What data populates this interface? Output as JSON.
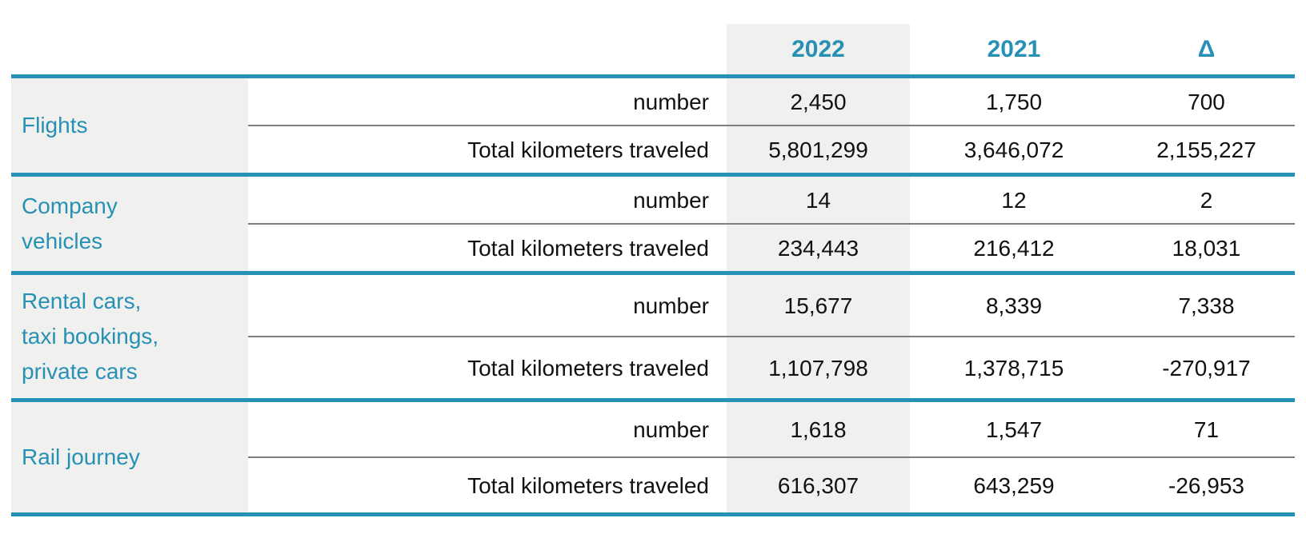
{
  "colors": {
    "accent": "#2791b5",
    "shade": "#f0f0ee",
    "divider": "#7f7f7f",
    "text": "#111111"
  },
  "table": {
    "columns": [
      "2022",
      "2021",
      "Δ"
    ],
    "groups": [
      {
        "category": "Flights",
        "rows": [
          {
            "metric": "number",
            "y2022": "2,450",
            "y2021": "1,750",
            "delta": "700"
          },
          {
            "metric": "Total kilometers traveled",
            "y2022": "5,801,299",
            "y2021": "3,646,072",
            "delta": "2,155,227"
          }
        ]
      },
      {
        "category": "Company\nvehicles",
        "rows": [
          {
            "metric": "number",
            "y2022": "14",
            "y2021": "12",
            "delta": "2"
          },
          {
            "metric": "Total kilometers traveled",
            "y2022": "234,443",
            "y2021": "216,412",
            "delta": "18,031"
          }
        ]
      },
      {
        "category": "Rental cars,\ntaxi bookings,\nprivate cars",
        "rows": [
          {
            "metric": "number",
            "y2022": "15,677",
            "y2021": "8,339",
            "delta": "7,338"
          },
          {
            "metric": "Total kilometers traveled",
            "y2022": "1,107,798",
            "y2021": "1,378,715",
            "delta": "-270,917"
          }
        ]
      },
      {
        "category": "Rail journey",
        "rows": [
          {
            "metric": "number",
            "y2022": "1,618",
            "y2021": "1,547",
            "delta": "71"
          },
          {
            "metric": "Total kilometers traveled",
            "y2022": "616,307",
            "y2021": "643,259",
            "delta": "-26,953"
          }
        ]
      }
    ]
  },
  "chart_data": {
    "type": "table",
    "title": "",
    "columns": [
      "2022",
      "2021",
      "Δ"
    ],
    "rows": [
      {
        "category": "Flights",
        "metric": "number",
        "values": [
          2450,
          1750,
          700
        ]
      },
      {
        "category": "Flights",
        "metric": "Total kilometers traveled",
        "values": [
          5801299,
          3646072,
          2155227
        ]
      },
      {
        "category": "Company vehicles",
        "metric": "number",
        "values": [
          14,
          12,
          2
        ]
      },
      {
        "category": "Company vehicles",
        "metric": "Total kilometers traveled",
        "values": [
          234443,
          216412,
          18031
        ]
      },
      {
        "category": "Rental cars, taxi bookings, private cars",
        "metric": "number",
        "values": [
          15677,
          8339,
          7338
        ]
      },
      {
        "category": "Rental cars, taxi bookings, private cars",
        "metric": "Total kilometers traveled",
        "values": [
          1107798,
          1378715,
          -270917
        ]
      },
      {
        "category": "Rail journey",
        "metric": "number",
        "values": [
          1618,
          1547,
          71
        ]
      },
      {
        "category": "Rail journey",
        "metric": "Total kilometers traveled",
        "values": [
          616307,
          643259,
          -26953
        ]
      }
    ]
  }
}
